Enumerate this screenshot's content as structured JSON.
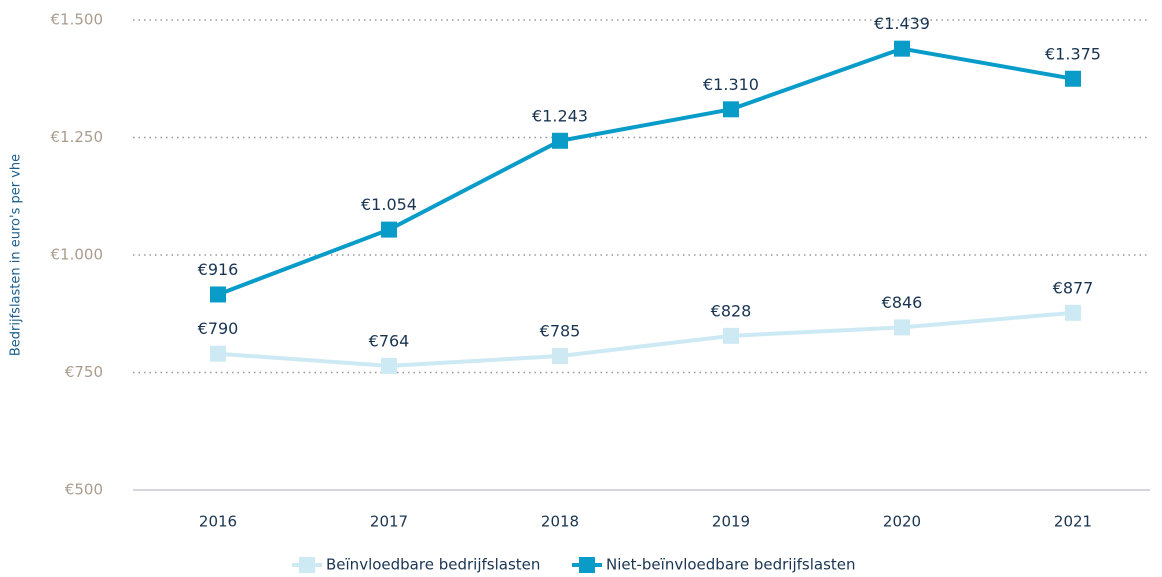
{
  "chart_data": {
    "type": "line",
    "y_label": "Bedrijfslasten in euro's per vhe",
    "categories": [
      "2016",
      "2017",
      "2018",
      "2019",
      "2020",
      "2021"
    ],
    "series": [
      {
        "name": "Beïnvloedbare bedrijfslasten",
        "color": "#cdeaf4",
        "values": [
          790,
          764,
          785,
          828,
          846,
          877
        ],
        "value_labels": [
          "€790",
          "€764",
          "€785",
          "€828",
          "€846",
          "€877"
        ]
      },
      {
        "name": "Niet-beïnvloedbare bedrijfslasten",
        "color": "#0a9cc9",
        "values": [
          916,
          1054,
          1243,
          1310,
          1439,
          1375
        ],
        "value_labels": [
          "€916",
          "€1.054",
          "€1.243",
          "€1.310",
          "€1.439",
          "€1.375"
        ]
      }
    ],
    "ylim": [
      500,
      1500
    ],
    "yticks": [
      {
        "value": 500,
        "label": "€500"
      },
      {
        "value": 750,
        "label": "€750"
      },
      {
        "value": 1000,
        "label": "€1.000"
      },
      {
        "value": 1250,
        "label": "€1.250"
      },
      {
        "value": 1500,
        "label": "€1.500"
      }
    ],
    "grid": true,
    "legend": "bottom"
  }
}
